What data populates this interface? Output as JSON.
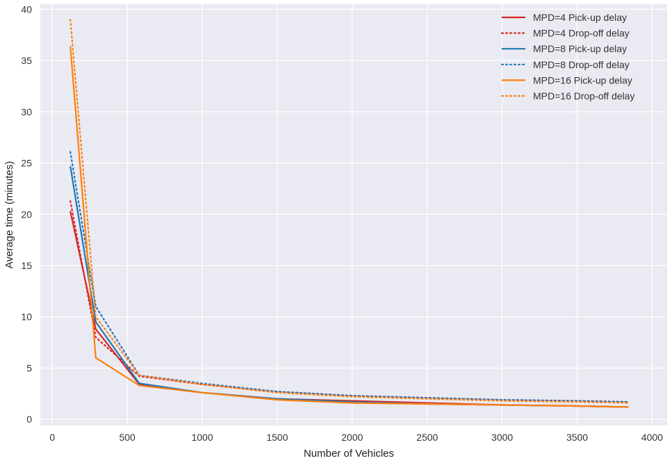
{
  "chart_data": {
    "type": "line",
    "title": "",
    "xlabel": "Number of Vehicles",
    "ylabel": "Average time (minutes)",
    "xlim": [
      -80,
      4100
    ],
    "ylim": [
      -0.6,
      40.5
    ],
    "xticks": [
      0,
      500,
      1000,
      1500,
      2000,
      2500,
      3000,
      3500,
      4000
    ],
    "yticks": [
      0,
      5,
      10,
      15,
      20,
      25,
      30,
      35,
      40
    ],
    "grid": true,
    "legend_position": "top-right",
    "colors": {
      "background": "#eaeaf2",
      "grid": "#ffffff",
      "red": "#d62728",
      "blue": "#1f77b4",
      "orange": "#ff7f0e"
    },
    "series": [
      {
        "name": "MPD=4 Pick-up delay",
        "color": "#d62728",
        "style": "solid",
        "x": [
          120,
          290,
          580,
          1000,
          1500,
          2000,
          2500,
          3000,
          3500,
          3840
        ],
        "y": [
          20.3,
          8.8,
          3.4,
          2.6,
          2.0,
          1.8,
          1.6,
          1.4,
          1.3,
          1.2
        ]
      },
      {
        "name": "MPD=4 Drop-off delay",
        "color": "#d62728",
        "style": "dotted",
        "x": [
          120,
          290,
          580,
          1000,
          1500,
          2000,
          2500,
          3000,
          3500,
          3840
        ],
        "y": [
          21.3,
          8.0,
          4.2,
          3.4,
          2.7,
          2.3,
          2.1,
          1.9,
          1.8,
          1.7
        ]
      },
      {
        "name": "MPD=8 Pick-up delay",
        "color": "#1f77b4",
        "style": "solid",
        "x": [
          120,
          290,
          580,
          1000,
          1500,
          2000,
          2500,
          3000,
          3500,
          3840
        ],
        "y": [
          24.7,
          9.5,
          3.5,
          2.6,
          2.0,
          1.7,
          1.5,
          1.4,
          1.3,
          1.2
        ]
      },
      {
        "name": "MPD=8 Drop-off delay",
        "color": "#1f77b4",
        "style": "dotted",
        "x": [
          120,
          290,
          580,
          1000,
          1500,
          2000,
          2500,
          3000,
          3500,
          3840
        ],
        "y": [
          26.1,
          11.0,
          4.3,
          3.5,
          2.7,
          2.3,
          2.1,
          1.9,
          1.8,
          1.7
        ]
      },
      {
        "name": "MPD=16 Pick-up delay",
        "color": "#ff7f0e",
        "style": "solid",
        "x": [
          120,
          290,
          580,
          1000,
          1500,
          2000,
          2500,
          3000,
          3500,
          3840
        ],
        "y": [
          36.4,
          6.0,
          3.3,
          2.6,
          1.9,
          1.6,
          1.5,
          1.4,
          1.3,
          1.2
        ]
      },
      {
        "name": "MPD=16 Drop-off delay",
        "color": "#ff7f0e",
        "style": "dotted",
        "x": [
          120,
          290,
          580,
          1000,
          1500,
          2000,
          2500,
          3000,
          3500,
          3840
        ],
        "y": [
          39.0,
          10.0,
          4.3,
          3.4,
          2.6,
          2.2,
          2.0,
          1.8,
          1.7,
          1.6
        ]
      }
    ]
  }
}
